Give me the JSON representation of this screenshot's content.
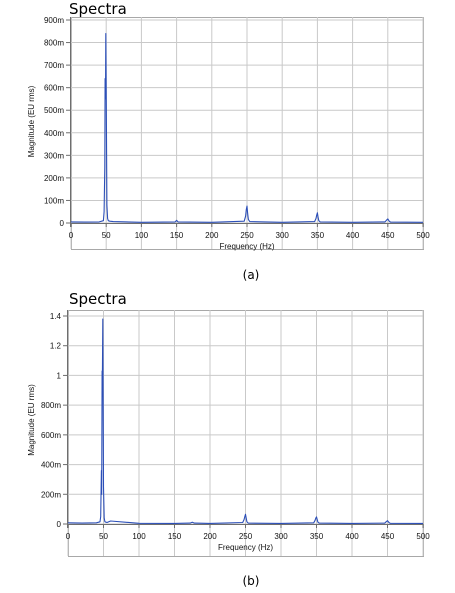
{
  "panels": [
    {
      "title": "Spectra",
      "caption": "(a)",
      "chart_data": {
        "type": "line",
        "xlabel": "Frequency (Hz)",
        "ylabel": "Magnitude (EU rms)",
        "xlim": [
          0,
          500
        ],
        "ylim": [
          0,
          0.9
        ],
        "x_ticks": [
          0,
          50,
          100,
          150,
          200,
          250,
          300,
          350,
          400,
          450,
          500
        ],
        "x_tick_labels": [
          "0",
          "50",
          "100",
          "150",
          "200",
          "250",
          "300",
          "350",
          "400",
          "450",
          "500"
        ],
        "y_ticks": [
          0,
          0.1,
          0.2,
          0.3,
          0.4,
          0.5,
          0.6,
          0.7,
          0.8,
          0.9
        ],
        "y_tick_labels": [
          "0",
          "100m",
          "200m",
          "300m",
          "400m",
          "500m",
          "600m",
          "700m",
          "800m",
          "900m"
        ],
        "grid": true,
        "color": "#2c4fb8",
        "x": [
          0,
          20,
          40,
          46,
          47,
          48,
          48.5,
          49,
          49.5,
          50,
          50.5,
          51,
          52,
          53,
          55,
          60,
          100,
          148,
          150,
          152,
          200,
          246,
          248,
          249,
          250,
          251,
          252,
          254,
          300,
          346,
          348,
          349,
          350,
          351,
          352,
          354,
          400,
          446,
          448,
          450,
          452,
          454,
          500
        ],
        "y": [
          0.005,
          0.004,
          0.005,
          0.01,
          0.05,
          0.25,
          0.64,
          0.55,
          0.84,
          0.6,
          0.3,
          0.08,
          0.02,
          0.01,
          0.008,
          0.006,
          0.003,
          0.005,
          0.012,
          0.005,
          0.003,
          0.008,
          0.03,
          0.06,
          0.075,
          0.04,
          0.015,
          0.006,
          0.003,
          0.006,
          0.02,
          0.035,
          0.045,
          0.025,
          0.01,
          0.005,
          0.003,
          0.005,
          0.012,
          0.018,
          0.008,
          0.004,
          0.003
        ]
      }
    },
    {
      "title": "Spectra",
      "caption": "(b)",
      "chart_data": {
        "type": "line",
        "xlabel": "Frequency (Hz)",
        "ylabel": "Magnitude (EU rms)",
        "xlim": [
          0,
          500
        ],
        "ylim": [
          0,
          1.4
        ],
        "x_ticks": [
          0,
          50,
          100,
          150,
          200,
          250,
          300,
          350,
          400,
          450,
          500
        ],
        "x_tick_labels": [
          "0",
          "50",
          "100",
          "150",
          "200",
          "250",
          "300",
          "350",
          "400",
          "450",
          "500"
        ],
        "y_ticks": [
          0,
          0.2,
          0.4,
          0.6,
          0.8,
          1.0,
          1.2,
          1.4
        ],
        "y_tick_labels": [
          "0",
          "200m",
          "400m",
          "600m",
          "800m",
          "1",
          "1.2",
          "1.4"
        ],
        "grid": true,
        "color": "#2c4fb8",
        "x": [
          0,
          20,
          40,
          45,
          46,
          47,
          47.5,
          48,
          48.5,
          49,
          49.5,
          50,
          51,
          52,
          55,
          60,
          100,
          150,
          172,
          175,
          178,
          200,
          246,
          248,
          249,
          250,
          251,
          252,
          254,
          300,
          346,
          348,
          349,
          350,
          351,
          352,
          354,
          400,
          446,
          448,
          450,
          452,
          454,
          500
        ],
        "y": [
          0.008,
          0.006,
          0.008,
          0.015,
          0.05,
          0.36,
          0.2,
          1.03,
          1.0,
          1.38,
          0.9,
          0.25,
          0.04,
          0.015,
          0.01,
          0.02,
          0.005,
          0.004,
          0.006,
          0.012,
          0.006,
          0.004,
          0.01,
          0.03,
          0.05,
          0.065,
          0.04,
          0.015,
          0.006,
          0.004,
          0.008,
          0.025,
          0.04,
          0.048,
          0.03,
          0.012,
          0.006,
          0.004,
          0.006,
          0.015,
          0.022,
          0.01,
          0.005,
          0.004
        ]
      }
    }
  ]
}
